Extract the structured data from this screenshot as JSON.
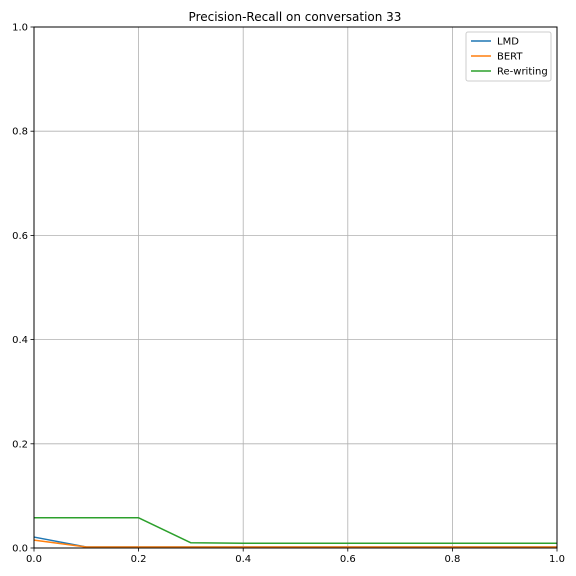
{
  "chart_data": {
    "type": "line",
    "title": "Precision-Recall on conversation 33",
    "xlabel": "",
    "ylabel": "",
    "xlim": [
      0.0,
      1.0
    ],
    "ylim": [
      0.0,
      1.0
    ],
    "x_ticks": [
      "0.0",
      "0.2",
      "0.4",
      "0.6",
      "0.8",
      "1.0"
    ],
    "y_ticks": [
      "0.0",
      "0.2",
      "0.4",
      "0.6",
      "0.8",
      "1.0"
    ],
    "grid": true,
    "legend_position": "top-right",
    "series": [
      {
        "name": "LMD",
        "color": "#1f77b4",
        "x": [
          0.0,
          0.1,
          0.2,
          0.3,
          0.4,
          0.5,
          0.6,
          0.7,
          0.8,
          0.9,
          1.0
        ],
        "y": [
          0.021,
          0.002,
          0.002,
          0.002,
          0.002,
          0.002,
          0.002,
          0.002,
          0.002,
          0.002,
          0.002
        ]
      },
      {
        "name": "BERT",
        "color": "#ff7f0e",
        "x": [
          0.0,
          0.1,
          0.2,
          0.3,
          0.4,
          0.5,
          0.6,
          0.7,
          0.8,
          0.9,
          1.0
        ],
        "y": [
          0.015,
          0.002,
          0.002,
          0.002,
          0.002,
          0.002,
          0.002,
          0.002,
          0.002,
          0.002,
          0.002
        ]
      },
      {
        "name": "Re-writing",
        "color": "#2ca02c",
        "x": [
          0.0,
          0.1,
          0.2,
          0.3,
          0.4,
          0.5,
          0.6,
          0.7,
          0.8,
          0.9,
          1.0
        ],
        "y": [
          0.058,
          0.058,
          0.058,
          0.01,
          0.009,
          0.009,
          0.009,
          0.009,
          0.009,
          0.009,
          0.009
        ]
      }
    ]
  }
}
